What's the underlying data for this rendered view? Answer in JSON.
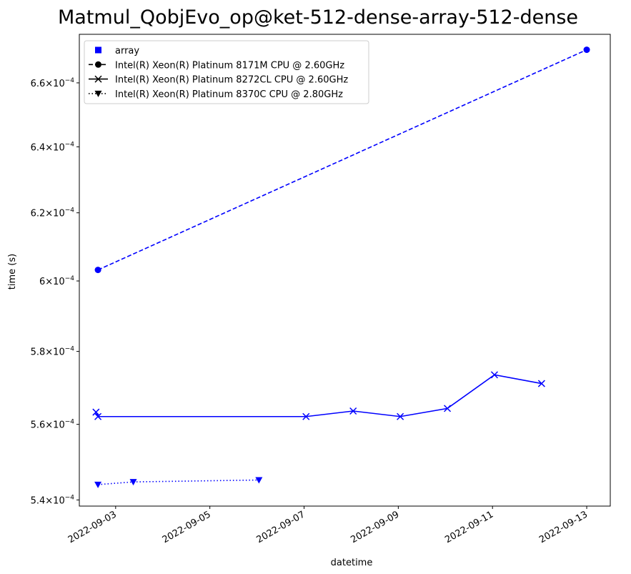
{
  "chart_data": {
    "type": "line",
    "title": "Matmul_QobjEvo_op@ket-512-dense-array-512-dense",
    "xlabel": "datetime",
    "ylabel": "time (s)",
    "yscale": "log",
    "xlim": [
      "2022-09-02T05:30",
      "2022-09-13T12:00"
    ],
    "ylim": [
      0.0005384,
      0.0006756
    ],
    "x_ticks": [
      "2022-09-03",
      "2022-09-05",
      "2022-09-07",
      "2022-09-09",
      "2022-09-11",
      "2022-09-13"
    ],
    "y_ticks": [
      {
        "value": 0.00054,
        "mantissa": "5.4",
        "exponent": "−4"
      },
      {
        "value": 0.00056,
        "mantissa": "5.6",
        "exponent": "−4"
      },
      {
        "value": 0.00058,
        "mantissa": "5.8",
        "exponent": "−4"
      },
      {
        "value": 0.0006,
        "mantissa": "6",
        "exponent": "−4"
      },
      {
        "value": 0.00062,
        "mantissa": "6.2",
        "exponent": "−4"
      },
      {
        "value": 0.00064,
        "mantissa": "6.4",
        "exponent": "−4"
      },
      {
        "value": 0.00066,
        "mantissa": "6.6",
        "exponent": "−4"
      }
    ],
    "grid": false,
    "legend_position": "top-left",
    "color": "#0000ff",
    "legend": [
      {
        "label": "array",
        "marker": "square",
        "line": "none",
        "color": "#0000ff"
      },
      {
        "label": "Intel(R) Xeon(R) Platinum 8171M CPU @ 2.60GHz",
        "marker": "circle",
        "line": "dashed",
        "color": "#000000"
      },
      {
        "label": "Intel(R) Xeon(R) Platinum 8272CL CPU @ 2.60GHz",
        "marker": "x",
        "line": "solid",
        "color": "#000000"
      },
      {
        "label": "Intel(R) Xeon(R) Platinum 8370C CPU @ 2.80GHz",
        "marker": "triangle-down",
        "line": "dotted",
        "color": "#000000"
      }
    ],
    "series": [
      {
        "cpu": "Intel(R) Xeon(R) Platinum 8171M CPU @ 2.60GHz",
        "marker": "circle",
        "line": "dashed",
        "points": [
          {
            "x": "2022-09-02T15:00",
            "y": 0.0006032
          },
          {
            "x": "2022-09-13T00:00",
            "y": 0.0006706
          }
        ]
      },
      {
        "cpu": "Intel(R) Xeon(R) Platinum 8272CL CPU @ 2.60GHz",
        "marker": "x",
        "line": "solid",
        "points": [
          {
            "x": "2022-09-02T14:00",
            "y": 0.0005633
          },
          {
            "x": "2022-09-02T15:00",
            "y": 0.0005621
          },
          {
            "x": "2022-09-07T01:00",
            "y": 0.0005621
          },
          {
            "x": "2022-09-08T01:00",
            "y": 0.0005636
          },
          {
            "x": "2022-09-09T01:00",
            "y": 0.0005621
          },
          {
            "x": "2022-09-10T01:00",
            "y": 0.0005643
          },
          {
            "x": "2022-09-11T01:00",
            "y": 0.0005735
          },
          {
            "x": "2022-09-12T01:00",
            "y": 0.0005711
          }
        ]
      },
      {
        "cpu": "Intel(R) Xeon(R) Platinum 8370C CPU @ 2.80GHz",
        "marker": "triangle-down",
        "line": "dotted",
        "points": [
          {
            "x": "2022-09-02T15:00",
            "y": 0.000544
          },
          {
            "x": "2022-09-03T09:00",
            "y": 0.0005447
          },
          {
            "x": "2022-09-06T01:00",
            "y": 0.0005452
          }
        ]
      }
    ]
  }
}
